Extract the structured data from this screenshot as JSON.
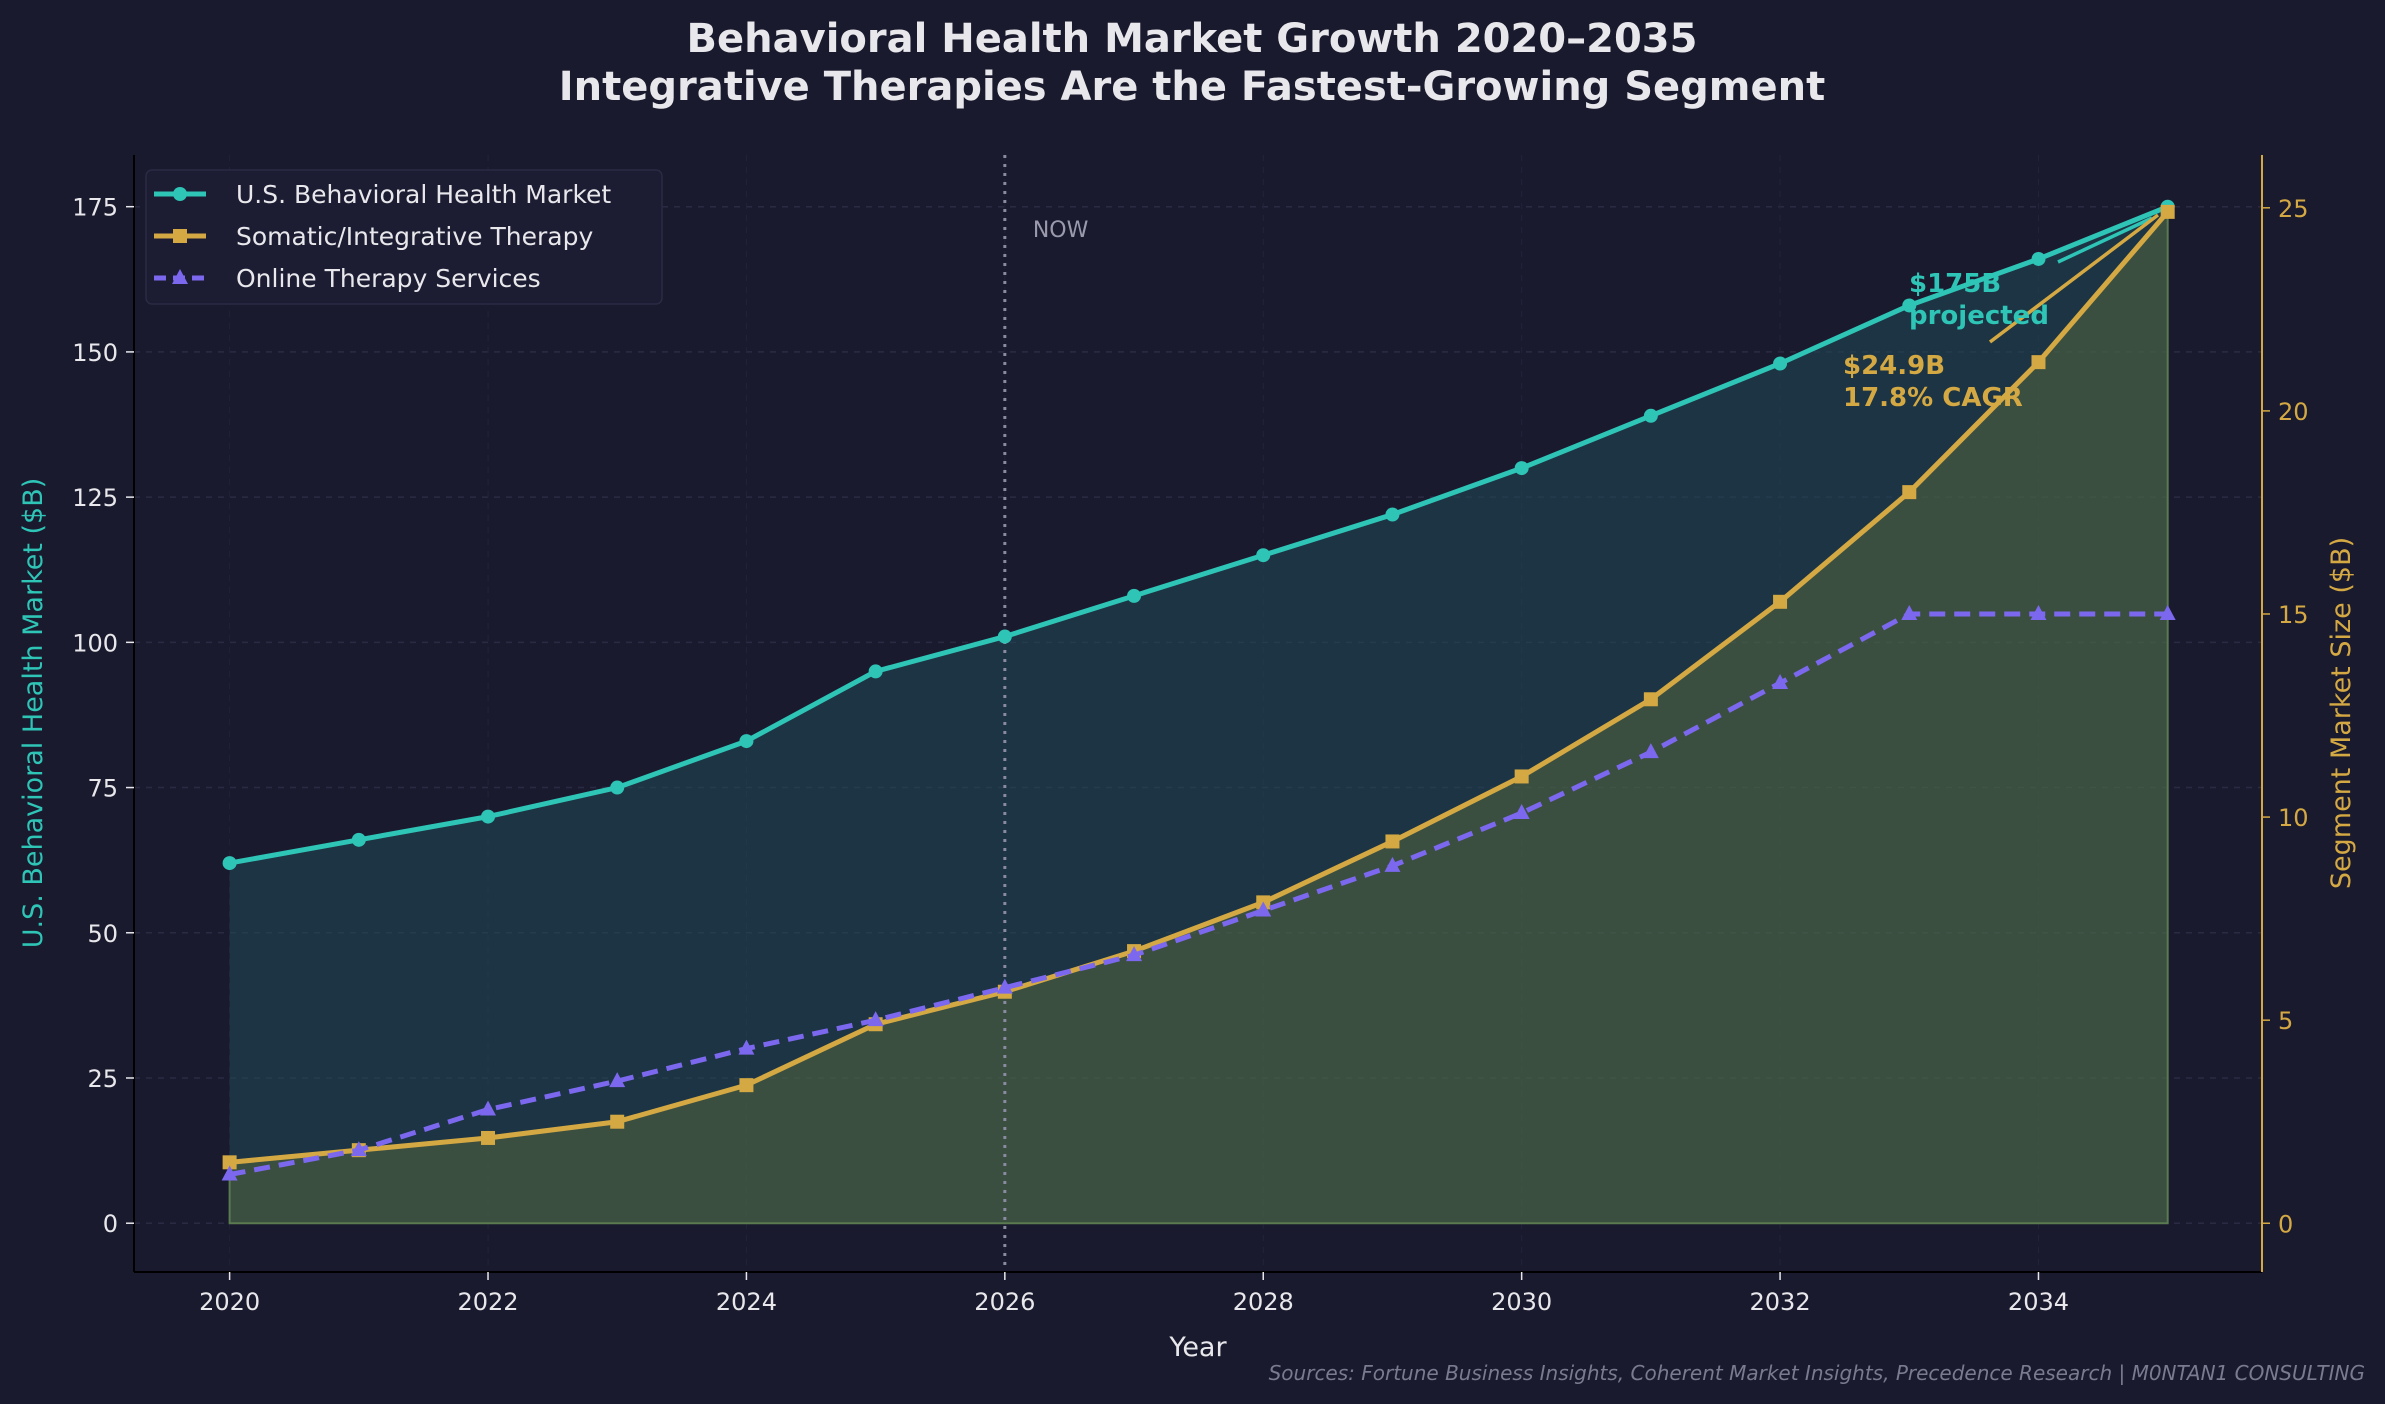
{
  "chart_data": {
    "type": "line",
    "title": "Behavioral Health Market Growth 2020–2035",
    "subtitle": "Integrative Therapies Are the Fastest-Growing Segment",
    "xlabel": "Year",
    "ylabel_left": "U.S. Behavioral Health Market ($B)",
    "ylabel_right": "Segment Market Size ($B)",
    "x": [
      2020,
      2021,
      2022,
      2023,
      2024,
      2025,
      2026,
      2027,
      2028,
      2029,
      2030,
      2031,
      2032,
      2033,
      2034,
      2035
    ],
    "xlim": [
      2019.26,
      2035.73
    ],
    "ylim_left": [
      -8.4,
      183.9
    ],
    "ylim_right": [
      -1.2,
      26.3
    ],
    "xticks": [
      2020,
      2022,
      2024,
      2026,
      2028,
      2030,
      2032,
      2034
    ],
    "yticks_left": [
      0,
      25,
      50,
      75,
      100,
      125,
      150,
      175
    ],
    "yticks_right": [
      0,
      5,
      10,
      15,
      20,
      25
    ],
    "grid": true,
    "legend_position": "top-left",
    "series": [
      {
        "name": "U.S. Behavioral Health Market",
        "axis": "left",
        "color": "#2ec4b6",
        "marker": "circle",
        "style": "solid",
        "fill": true,
        "values": [
          62,
          66,
          70,
          75,
          83,
          95,
          101,
          108,
          115,
          122,
          130,
          139,
          148,
          158,
          166,
          175
        ]
      },
      {
        "name": "Somatic/Integrative Therapy",
        "axis": "right",
        "color": "#d4a843",
        "marker": "square",
        "style": "solid",
        "fill": true,
        "values": [
          1.5,
          1.8,
          2.1,
          2.5,
          3.4,
          4.9,
          5.7,
          6.7,
          7.9,
          9.4,
          11.0,
          12.9,
          15.3,
          18.0,
          21.2,
          24.9
        ]
      },
      {
        "name": "Online Therapy Services",
        "axis": "right",
        "color": "#7b68ee",
        "marker": "triangle",
        "style": "dashed",
        "fill": false,
        "values": [
          1.2,
          1.8,
          2.8,
          3.5,
          4.3,
          5.0,
          5.8,
          6.6,
          7.7,
          8.8,
          10.1,
          11.6,
          13.3,
          15.0,
          15.0,
          15.0
        ]
      }
    ],
    "vline": {
      "x": 2026,
      "label": "NOW"
    },
    "annotations": [
      {
        "lines": [
          "$175B",
          "projected"
        ],
        "color": "#2ec4b6",
        "target_x": 2035,
        "target_series": 0
      },
      {
        "lines": [
          "$24.9B",
          "17.8% CAGR"
        ],
        "color": "#d4a843",
        "target_x": 2035,
        "target_series": 1
      }
    ],
    "source": "Sources: Fortune Business Insights, Coherent Market Insights, Precedence Research | M0NTAN1 CONSULTING"
  }
}
